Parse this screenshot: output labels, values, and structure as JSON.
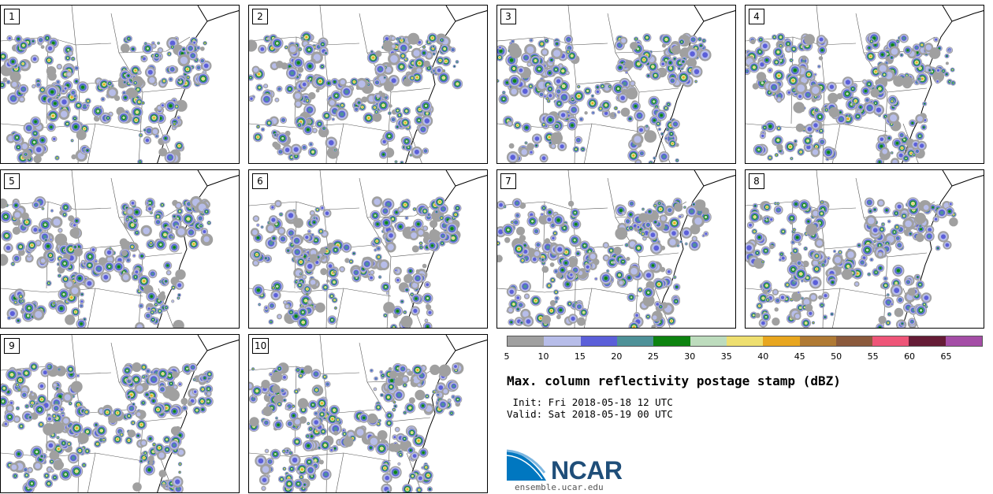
{
  "panels": [
    {
      "label": "1"
    },
    {
      "label": "2"
    },
    {
      "label": "3"
    },
    {
      "label": "4"
    },
    {
      "label": "5"
    },
    {
      "label": "6"
    },
    {
      "label": "7"
    },
    {
      "label": "8"
    },
    {
      "label": "9"
    },
    {
      "label": "10"
    }
  ],
  "legend": {
    "colors": [
      "#a0a0a0",
      "#b7bde9",
      "#5b5fd9",
      "#4e9198",
      "#0d8310",
      "#bddcbd",
      "#eedf70",
      "#e8a61f",
      "#b07a34",
      "#8b5a3c",
      "#ee5578",
      "#651c36",
      "#a44da6"
    ],
    "ticks": [
      "5",
      "10",
      "15",
      "20",
      "25",
      "30",
      "35",
      "40",
      "45",
      "50",
      "55",
      "60",
      "65"
    ]
  },
  "title": "Max. column reflectivity postage stamp (dBZ)",
  "init": " Init: Fri 2018-05-18 12 UTC",
  "valid": "Valid: Sat 2018-05-19 00 UTC",
  "logo": {
    "text": "NCAR",
    "url_text": "ensemble.ucar.edu"
  }
}
